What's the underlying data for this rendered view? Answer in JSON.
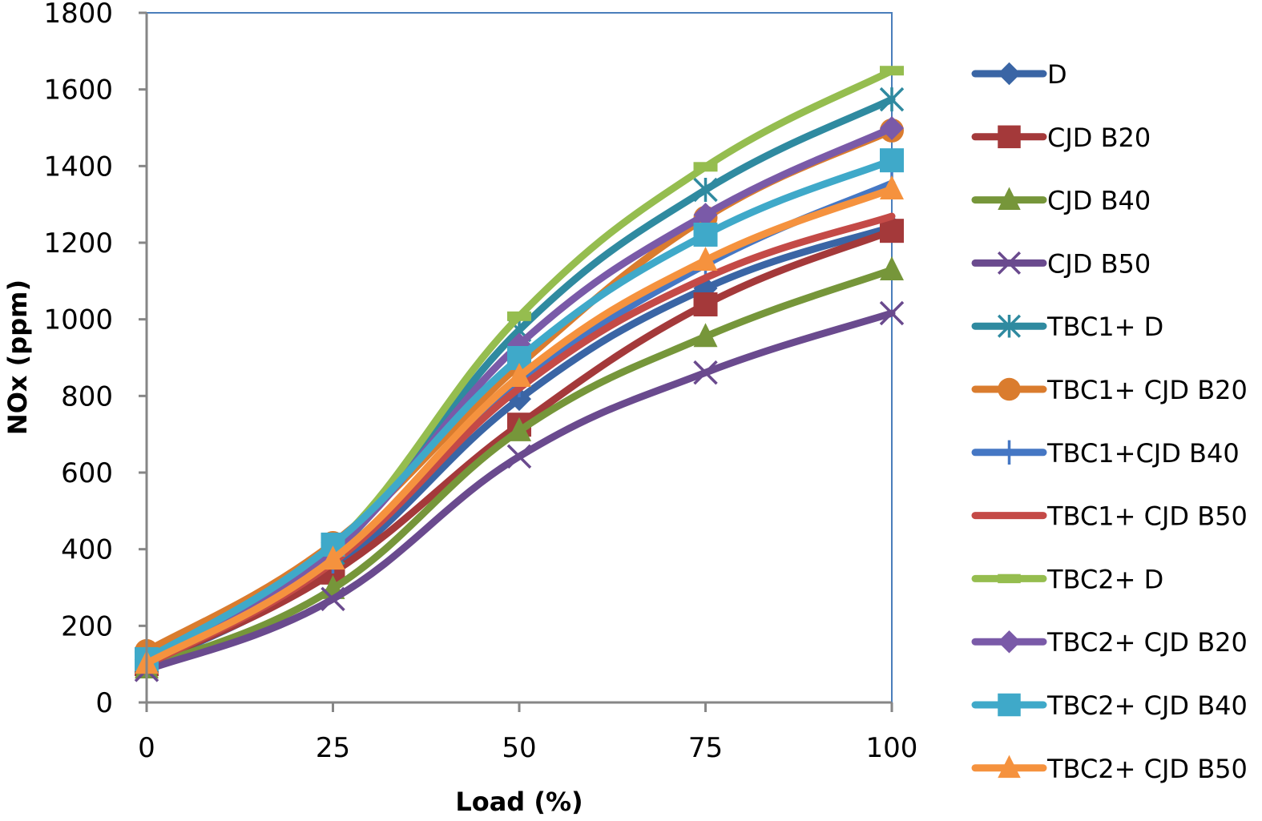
{
  "chart_data": {
    "type": "line",
    "title": "",
    "xlabel": "Load (%)",
    "ylabel": "NOx (ppm)",
    "x": [
      0,
      25,
      50,
      75,
      100
    ],
    "x_tick_labels": [
      "0",
      "25",
      "50",
      "75",
      "100"
    ],
    "xlim": [
      0,
      100
    ],
    "ylim": [
      0,
      1800
    ],
    "y_tick_labels": [
      "0",
      "200",
      "400",
      "600",
      "800",
      "1000",
      "1200",
      "1400",
      "1600",
      "1800"
    ],
    "grid": false,
    "legend_position": "right",
    "smooth": true,
    "series": [
      {
        "name": "D",
        "color": "#3a65a5",
        "marker": "diamond",
        "values": [
          95,
          350,
          792,
          1081,
          1241
        ]
      },
      {
        "name": "CJD B20",
        "color": "#a4393a",
        "marker": "square",
        "values": [
          100,
          339,
          725,
          1039,
          1231
        ]
      },
      {
        "name": "CJD B40",
        "color": "#76963a",
        "marker": "triangle",
        "values": [
          90,
          297,
          709,
          955,
          1129
        ]
      },
      {
        "name": "CJD B50",
        "color": "#6a4a8e",
        "marker": "x",
        "values": [
          85,
          270,
          642,
          861,
          1016
        ]
      },
      {
        "name": "TBC1+ D",
        "color": "#2f8aa0",
        "marker": "star",
        "values": [
          105,
          390,
          972,
          1338,
          1574
        ]
      },
      {
        "name": "TBC1+ CJD B20",
        "color": "#da7c2e",
        "marker": "circle",
        "values": [
          134,
          416,
          880,
          1265,
          1493
        ]
      },
      {
        "name": "TBC1+CJD B40",
        "color": "#4577c4",
        "marker": "plus",
        "values": [
          100,
          370,
          830,
          1143,
          1355
        ]
      },
      {
        "name": "TBC1+ CJD B50",
        "color": "#c44a47",
        "marker": "none",
        "values": [
          98,
          365,
          820,
          1108,
          1269
        ]
      },
      {
        "name": "TBC2+ D",
        "color": "#95bd4f",
        "marker": "dash",
        "values": [
          110,
          405,
          1008,
          1398,
          1649
        ]
      },
      {
        "name": "TBC2+ CJD B20",
        "color": "#7a5aa8",
        "marker": "diamond",
        "values": [
          108,
          395,
          934,
          1273,
          1499
        ]
      },
      {
        "name": "TBC2+ CJD B40",
        "color": "#3fa9c9",
        "marker": "square",
        "values": [
          113,
          412,
          899,
          1221,
          1415
        ]
      },
      {
        "name": "TBC2+ CJD B50",
        "color": "#f5923e",
        "marker": "triangle",
        "values": [
          102,
          374,
          851,
          1154,
          1340
        ]
      }
    ]
  }
}
